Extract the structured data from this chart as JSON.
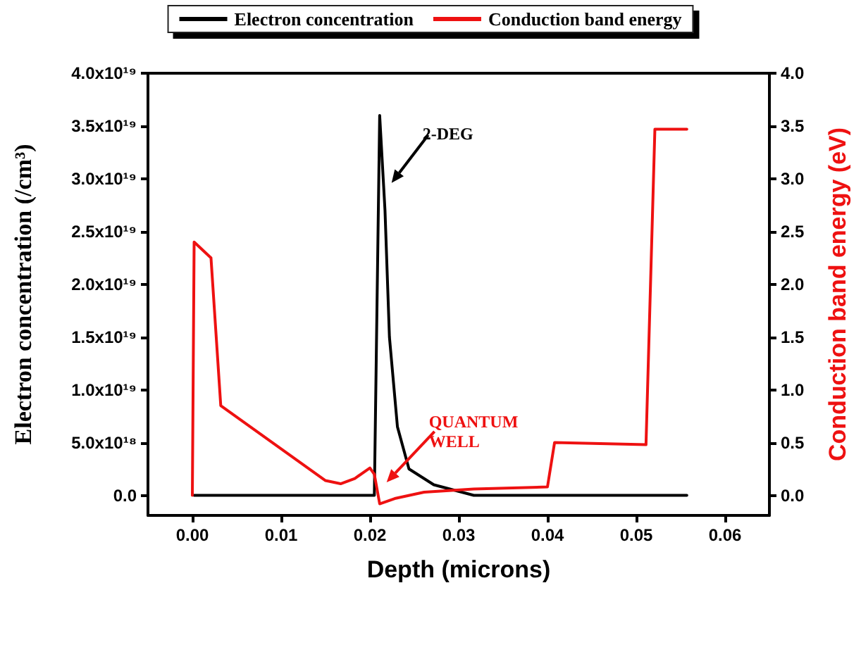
{
  "chart_data": {
    "type": "line",
    "xlabel": "Depth (microns)",
    "ylabel": "Electron concentration (/cm³)",
    "y2label": "Conduction band energy (eV)",
    "legend": "top",
    "marker": "none",
    "line_style": "solid",
    "grid": false,
    "xlim": [
      -0.005,
      0.065
    ],
    "xticks": [
      {
        "value": 0,
        "label": "0.00"
      },
      {
        "value": 0.01,
        "label": "0.01"
      },
      {
        "value": 0.02,
        "label": "0.02"
      },
      {
        "value": 0.03,
        "label": "0.03"
      },
      {
        "value": 0.04,
        "label": "0.04"
      },
      {
        "value": 0.05,
        "label": "0.05"
      },
      {
        "value": 0.06,
        "label": "0.06"
      }
    ],
    "ylim": [
      -1.9e+18,
      4e+19
    ],
    "yticks": [
      {
        "value": 0,
        "label": "0.0"
      },
      {
        "value": 5e+18,
        "label": "5.0x10¹⁸"
      },
      {
        "value": 1e+19,
        "label": "1.0x10¹⁹"
      },
      {
        "value": 1.5e+19,
        "label": "1.5x10¹⁹"
      },
      {
        "value": 2e+19,
        "label": "2.0x10¹⁹"
      },
      {
        "value": 2.5e+19,
        "label": "2.5x10¹⁹"
      },
      {
        "value": 3e+19,
        "label": "3.0x10¹⁹"
      },
      {
        "value": 3.5e+19,
        "label": "3.5x10¹⁹"
      },
      {
        "value": 4e+19,
        "label": "4.0x10¹⁹"
      }
    ],
    "y2lim": [
      -0.19,
      4.0
    ],
    "y2ticks": [
      {
        "value": 0,
        "label": "0.0"
      },
      {
        "value": 0.5,
        "label": "0.5"
      },
      {
        "value": 1,
        "label": "1.0"
      },
      {
        "value": 1.5,
        "label": "1.5"
      },
      {
        "value": 2,
        "label": "2.0"
      },
      {
        "value": 2.5,
        "label": "2.5"
      },
      {
        "value": 3,
        "label": "3.0"
      },
      {
        "value": 3.5,
        "label": "3.5"
      },
      {
        "value": 4,
        "label": "4.0"
      }
    ],
    "series": [
      {
        "name": "Electron concentration",
        "color": "#000000",
        "x": [
          0.0002,
          0.0205,
          0.0211,
          0.0217,
          0.0222,
          0.0231,
          0.0244,
          0.0272,
          0.0317,
          0.04,
          0.0557
        ],
        "values": [
          0,
          0,
          3.6e+19,
          2.7e+19,
          1.5e+19,
          6.5e+18,
          2.5e+18,
          1e+18,
          0,
          0,
          0
        ]
      },
      {
        "name": "Conduction band energy",
        "color": "#ee1111",
        "axis": "y2",
        "x": [
          0,
          0.0002,
          0.0021,
          0.0032,
          0.015,
          0.0167,
          0.0183,
          0.02,
          0.0205,
          0.0211,
          0.0228,
          0.0261,
          0.0317,
          0.04,
          0.0408,
          0.0511,
          0.0521,
          0.0557
        ],
        "values": [
          0,
          2.4,
          2.25,
          0.85,
          0.14,
          0.11,
          0.16,
          0.26,
          0.2,
          -0.08,
          -0.03,
          0.03,
          0.06,
          0.08,
          0.5,
          0.48,
          3.47,
          3.47
        ]
      }
    ],
    "annotations": [
      "2-DEG",
      "QUANTUM\nWELL"
    ]
  }
}
